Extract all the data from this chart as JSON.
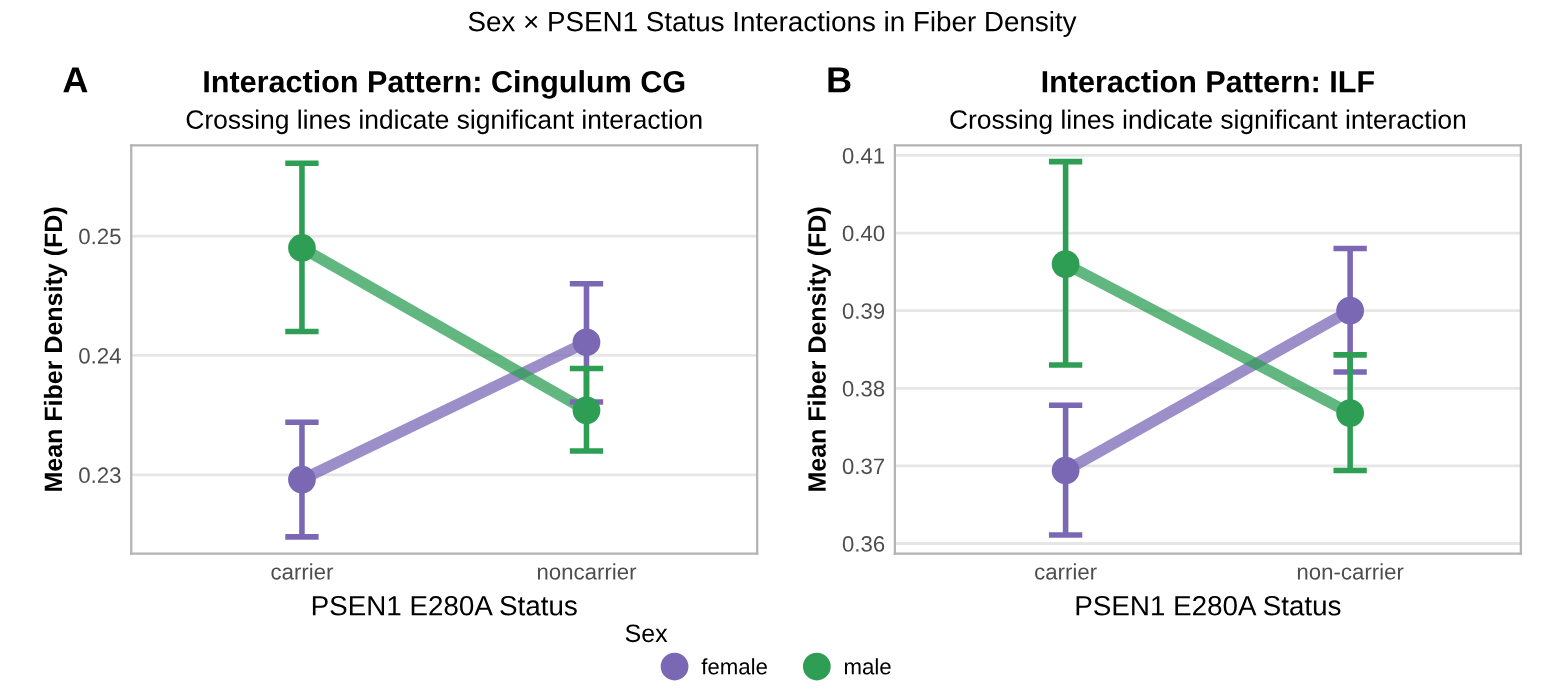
{
  "chart_data": [
    {
      "type": "line",
      "title": "Interaction Pattern: Cingulum CG",
      "subtitle": "Crossing lines indicate significant interaction",
      "xlabel": "PSEN1 E280A Status",
      "ylabel": "Mean Fiber Density (FD)",
      "legend_title": "Sex",
      "annotations": [
        "Sex × PSEN1 Status Interactions in Fiber Density",
        "A"
      ],
      "categories": [
        "carrier",
        "noncarrier"
      ],
      "series": [
        {
          "name": "female",
          "color": "#7b68b5",
          "values": [
            0.2296,
            0.2411
          ],
          "errors": [
            [
              0.2248,
              0.2344
            ],
            [
              0.2361,
              0.246
            ]
          ]
        },
        {
          "name": "male",
          "color": "#2e9e55",
          "values": [
            0.249,
            0.2354
          ],
          "errors": [
            [
              0.242,
              0.2561
            ],
            [
              0.232,
              0.2389
            ]
          ]
        }
      ],
      "ylim": [
        0.2234,
        0.2576
      ],
      "yticks": [
        0.23,
        0.24,
        0.25
      ],
      "grid": "y",
      "legend": "bottom",
      "marker": "circle",
      "line_style": "solid"
    },
    {
      "type": "line",
      "title": "Interaction Pattern: ILF",
      "subtitle": "Crossing lines indicate significant interaction",
      "xlabel": "PSEN1 E280A Status",
      "ylabel": "Mean Fiber Density (FD)",
      "annotations": [
        "B"
      ],
      "categories": [
        "carrier",
        "non-carrier"
      ],
      "series": [
        {
          "color": "#7b68b5",
          "values": [
            0.3694,
            0.39
          ],
          "errors": [
            [
              0.3611,
              0.3778
            ],
            [
              0.3821,
              0.398
            ]
          ]
        },
        {
          "color": "#2e9e55",
          "values": [
            0.396,
            0.3768
          ],
          "errors": [
            [
              0.383,
              0.4092
            ],
            [
              0.3694,
              0.3843
            ]
          ]
        }
      ],
      "ylim": [
        0.3587,
        0.4113
      ],
      "yticks": [
        0.36,
        0.37,
        0.38,
        0.39,
        {
          "value": 0.4,
          "label": "0.40"
        },
        0.41
      ],
      "grid": "y",
      "marker": "circle",
      "line_style": "solid"
    }
  ]
}
